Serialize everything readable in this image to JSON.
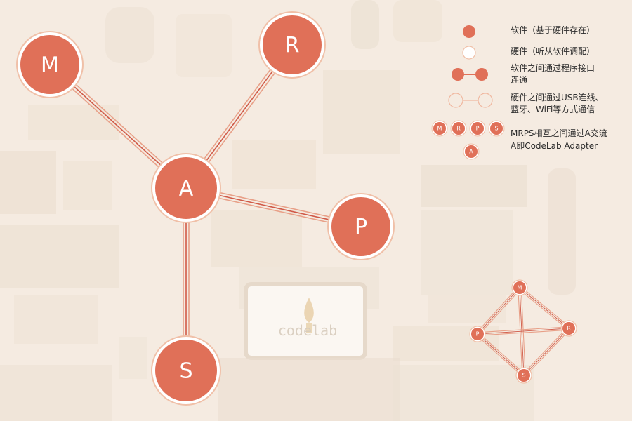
{
  "nodes": [
    {
      "id": "M",
      "label": "M"
    },
    {
      "id": "R",
      "label": "R"
    },
    {
      "id": "A",
      "label": "A"
    },
    {
      "id": "P",
      "label": "P"
    },
    {
      "id": "S",
      "label": "S"
    }
  ],
  "edges": [
    {
      "from": "M",
      "to": "A"
    },
    {
      "from": "R",
      "to": "A"
    },
    {
      "from": "P",
      "to": "A"
    },
    {
      "from": "S",
      "to": "A"
    }
  ],
  "mini_diagram": {
    "nodes": [
      {
        "id": "M",
        "label": "M"
      },
      {
        "id": "R",
        "label": "R"
      },
      {
        "id": "P",
        "label": "P"
      },
      {
        "id": "S",
        "label": "S"
      }
    ],
    "edges": [
      {
        "from": "M",
        "to": "R"
      },
      {
        "from": "R",
        "to": "S"
      },
      {
        "from": "S",
        "to": "P"
      },
      {
        "from": "P",
        "to": "M"
      },
      {
        "from": "M",
        "to": "S"
      },
      {
        "from": "P",
        "to": "R"
      }
    ]
  },
  "legend": {
    "software": "软件（基于硬件存在）",
    "hardware": "硬件（听从软件调配）",
    "software_link_line1": "软件之间通过程序接口",
    "software_link_line2": "连通",
    "hardware_link_line1": "硬件之间通过USB连线、",
    "hardware_link_line2": "蓝牙、WiFi等方式通信",
    "mrps_line1": "MRPS相互之间通过A交流",
    "mrps_line2": "A即CodeLab Adapter",
    "mrps_badges": [
      "M",
      "R",
      "P",
      "S"
    ],
    "a_badge": "A"
  },
  "background_text": {
    "device_logo": "codelab"
  },
  "colors": {
    "node_fill": "#e07058",
    "node_ring": "#f0c0a8",
    "edge_outer": "#e8a088",
    "edge_inner": "#d05a48",
    "background": "#f6ece2"
  }
}
